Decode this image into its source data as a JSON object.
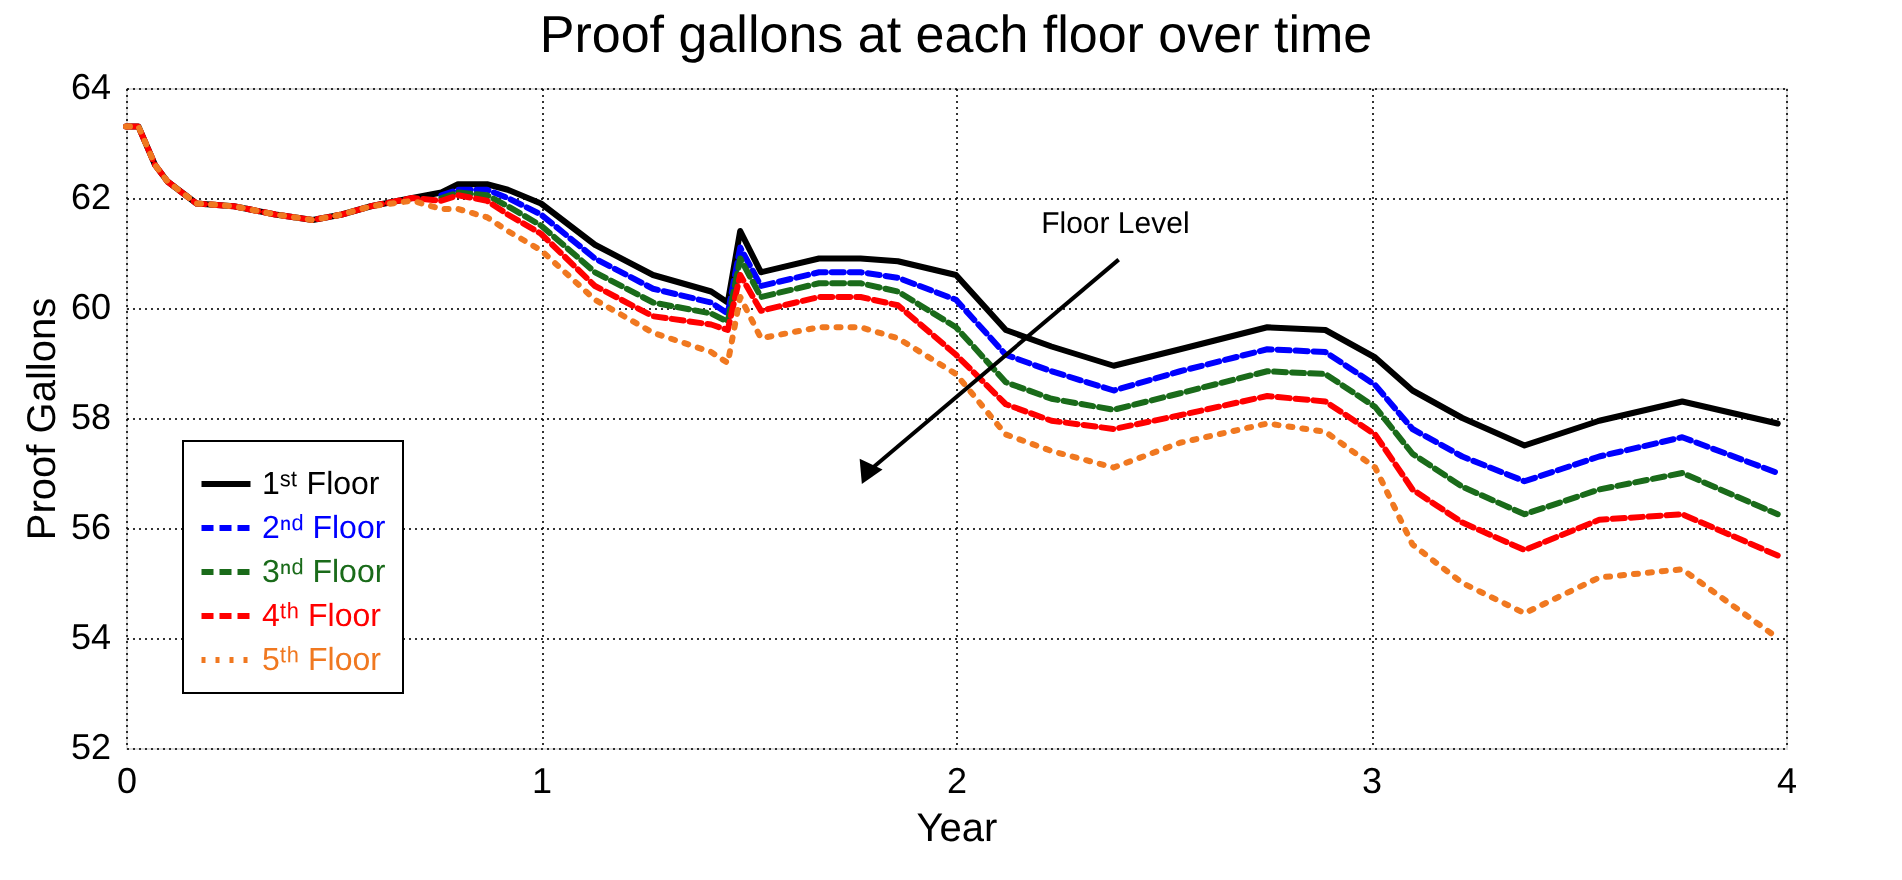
{
  "chart_data": {
    "type": "line",
    "title": "Proof gallons at each floor over time",
    "xlabel": "Year",
    "ylabel": "Proof Gallons",
    "x": [
      0,
      0.03,
      0.07,
      0.1,
      0.17,
      0.26,
      0.36,
      0.45,
      0.52,
      0.59,
      0.69,
      0.76,
      0.8,
      0.87,
      0.92,
      1.0,
      1.13,
      1.27,
      1.41,
      1.45,
      1.48,
      1.53,
      1.67,
      1.77,
      1.86,
      2.0,
      2.12,
      2.23,
      2.38,
      2.54,
      2.75,
      2.89,
      3.01,
      3.1,
      3.22,
      3.37,
      3.55,
      3.75,
      3.98
    ],
    "series": [
      {
        "name": "1ˢᵗ Floor",
        "color": "#000000",
        "line_style": "solid",
        "values": [
          63.3,
          63.3,
          62.6,
          62.3,
          61.9,
          61.85,
          61.7,
          61.6,
          61.7,
          61.85,
          62.0,
          62.1,
          62.25,
          62.25,
          62.15,
          61.9,
          61.15,
          60.6,
          60.3,
          60.1,
          61.4,
          60.65,
          60.9,
          60.9,
          60.85,
          60.6,
          59.6,
          59.3,
          58.95,
          59.25,
          59.65,
          59.6,
          59.1,
          58.5,
          58.0,
          57.5,
          57.95,
          58.3,
          57.9
        ]
      },
      {
        "name": "2ⁿᵈ Floor",
        "color": "#0000ff",
        "line_style": "dashed",
        "values": [
          null,
          null,
          null,
          null,
          null,
          null,
          null,
          null,
          null,
          null,
          null,
          62.05,
          62.15,
          62.15,
          62.0,
          61.7,
          60.9,
          60.35,
          60.1,
          59.9,
          61.1,
          60.4,
          60.65,
          60.65,
          60.55,
          60.15,
          59.15,
          58.85,
          58.5,
          58.85,
          59.25,
          59.2,
          58.6,
          57.8,
          57.3,
          56.85,
          57.3,
          57.65,
          57.0
        ]
      },
      {
        "name": "3ⁿᵈ Floor",
        "color": "#1a6b1a",
        "line_style": "dashed",
        "values": [
          null,
          null,
          null,
          null,
          null,
          null,
          null,
          null,
          null,
          null,
          null,
          62.0,
          62.1,
          62.05,
          61.85,
          61.5,
          60.65,
          60.1,
          59.9,
          59.75,
          60.9,
          60.2,
          60.45,
          60.45,
          60.3,
          59.65,
          58.65,
          58.35,
          58.15,
          58.45,
          58.85,
          58.8,
          58.2,
          57.35,
          56.75,
          56.25,
          56.7,
          57.0,
          56.25
        ]
      },
      {
        "name": "4ᵗʰ Floor",
        "color": "#ff0000",
        "line_style": "dashed",
        "values": [
          63.3,
          63.3,
          62.6,
          62.3,
          61.9,
          61.85,
          61.7,
          61.6,
          61.7,
          61.85,
          62.0,
          61.95,
          62.05,
          61.95,
          61.7,
          61.35,
          60.4,
          59.85,
          59.7,
          59.6,
          60.6,
          59.95,
          60.2,
          60.2,
          60.05,
          59.15,
          58.25,
          57.95,
          57.8,
          58.05,
          58.4,
          58.3,
          57.7,
          56.7,
          56.1,
          55.6,
          56.15,
          56.25,
          55.5
        ]
      },
      {
        "name": "5ᵗʰ Floor",
        "color": "#f07820",
        "line_style": "dotted",
        "values": [
          63.3,
          63.3,
          62.6,
          62.3,
          61.9,
          61.85,
          61.7,
          61.6,
          61.7,
          61.85,
          61.95,
          61.8,
          61.8,
          61.65,
          61.4,
          61.05,
          60.15,
          59.55,
          59.2,
          59.0,
          60.2,
          59.45,
          59.65,
          59.65,
          59.45,
          58.8,
          57.7,
          57.4,
          57.1,
          57.55,
          57.9,
          57.75,
          57.1,
          55.7,
          55.0,
          54.45,
          55.1,
          55.25,
          54.0
        ]
      }
    ],
    "xlim": [
      0,
      4
    ],
    "xticks": [
      0,
      1,
      2,
      3,
      4
    ],
    "ylim": [
      52,
      64
    ],
    "yticks": [
      52,
      54,
      56,
      58,
      60,
      62,
      64
    ],
    "grid": true,
    "legend": "bottom left",
    "annotations": [
      "Floor Level"
    ]
  }
}
